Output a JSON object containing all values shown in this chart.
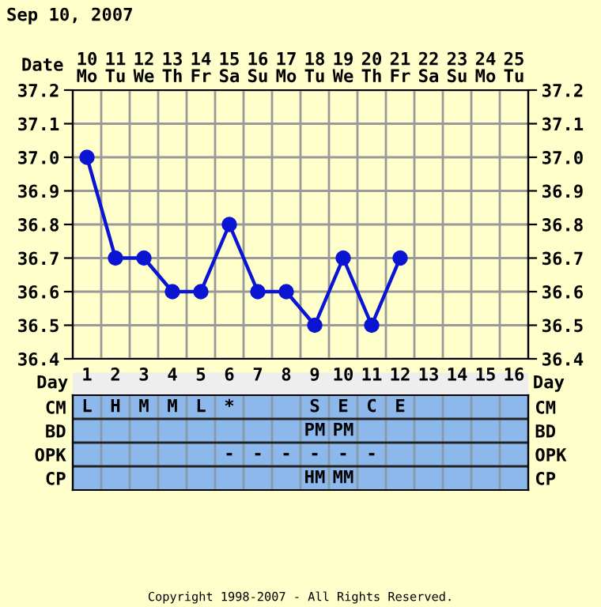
{
  "chart_data": [
    {
      "type": "line",
      "title": "Sep 10, 2007",
      "xlabel": "Date",
      "categories": [
        "10\nMo",
        "11\nTu",
        "12\nWe",
        "13\nTh",
        "14\nFr",
        "15\nSa",
        "16\nSu",
        "17\nMo",
        "18\nTu",
        "19\nWe",
        "20\nTh",
        "21\nFr",
        "22\nSa",
        "23\nSu",
        "24\nMo",
        "25\nTu"
      ],
      "series": [
        {
          "color": "#0a14d2",
          "values": [
            37.0,
            36.7,
            36.7,
            36.6,
            36.6,
            36.8,
            36.6,
            36.6,
            36.5,
            36.7,
            36.5,
            36.7,
            null,
            null,
            null,
            null
          ]
        }
      ],
      "ylim": [
        36.4,
        37.2
      ],
      "yticks": [
        36.4,
        36.5,
        36.6,
        36.7,
        36.8,
        36.9,
        {
          "value": 37.0,
          "label": "37.0"
        },
        37.1,
        37.2
      ],
      "y2lim": [
        36.4,
        37.2
      ],
      "y2ticks": [
        36.4,
        36.5,
        36.6,
        36.7,
        36.8,
        36.9,
        {
          "value": 37.0,
          "label": "37.0"
        },
        37.1,
        37.2
      ],
      "grid": true,
      "marker": "circle",
      "legend": false
    },
    {
      "type": "heatmap",
      "xlabel": "Day",
      "categories": [
        "1",
        "2",
        "3",
        "4",
        "5",
        "6",
        "7",
        "8",
        "9",
        "10",
        "11",
        "12",
        "13",
        "14",
        "15",
        "16"
      ],
      "y_categories": [
        "CM",
        "BD",
        "OPK",
        "CP"
      ],
      "y2_categories": [
        "CM",
        "BD",
        "OPK",
        "CP"
      ],
      "cells": [
        [
          null,
          null,
          null,
          null,
          null,
          null,
          null,
          null,
          null,
          null,
          null,
          null,
          null,
          null,
          null,
          null
        ],
        [
          null,
          null,
          null,
          null,
          null,
          null,
          null,
          null,
          null,
          null,
          null,
          null,
          null,
          null,
          null,
          null
        ],
        [
          null,
          null,
          null,
          null,
          null,
          null,
          null,
          null,
          null,
          null,
          null,
          null,
          null,
          null,
          null,
          null
        ],
        [
          null,
          null,
          null,
          null,
          null,
          null,
          null,
          null,
          null,
          null,
          null,
          null,
          null,
          null,
          null,
          null
        ]
      ],
      "cell_labels": [
        [
          "L",
          "H",
          "M",
          "M",
          "L",
          "*",
          null,
          null,
          "S",
          "E",
          "C",
          "E",
          null,
          null,
          null,
          null
        ],
        [
          null,
          null,
          null,
          null,
          null,
          null,
          null,
          null,
          "PM",
          "PM",
          null,
          null,
          null,
          null,
          null,
          null
        ],
        [
          null,
          null,
          null,
          null,
          null,
          "-",
          "-",
          "-",
          "-",
          "-",
          "-",
          null,
          null,
          null,
          null,
          null
        ],
        [
          null,
          null,
          null,
          null,
          null,
          null,
          null,
          null,
          "HM",
          "MM",
          null,
          null,
          null,
          null,
          null,
          null
        ]
      ],
      "annotations": [
        "Copyright 1998-2007 - All Rights Reserved."
      ]
    }
  ]
}
